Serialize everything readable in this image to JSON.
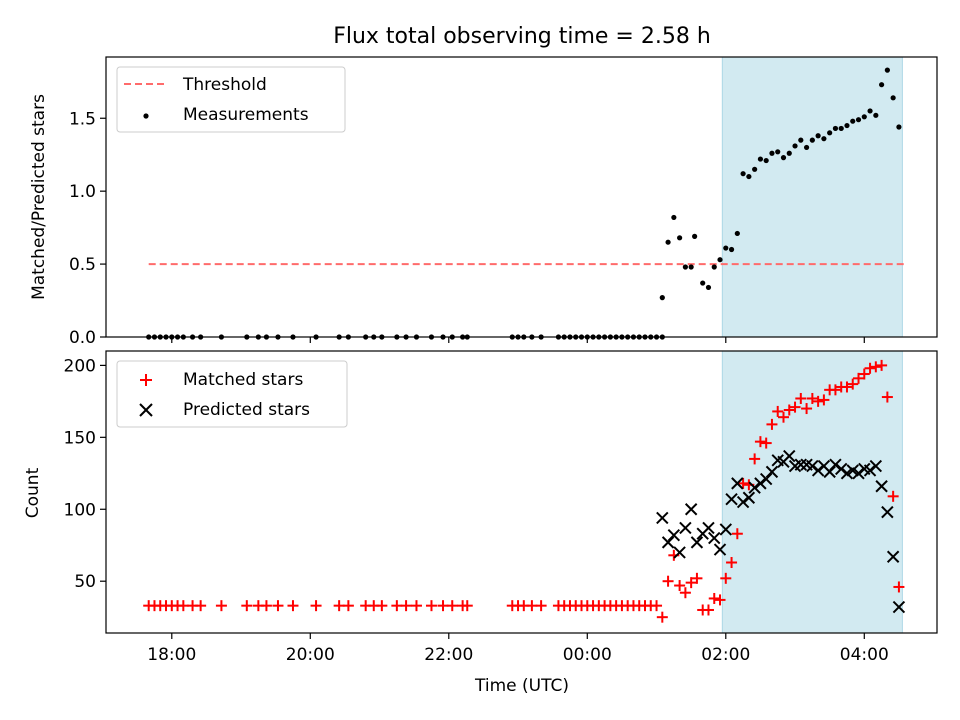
{
  "figure": {
    "title": "Flux total observing time = 2.58 h",
    "xlabel": "Time (UTC)"
  },
  "chart_data": [
    {
      "type": "scatter",
      "panel": "top",
      "ylabel": "Matched/Predicted stars",
      "ylim": [
        0,
        1.92
      ],
      "xlim": [
        "17:03",
        "05:03"
      ],
      "yticks": [
        0.0,
        0.5,
        1.0,
        1.5
      ],
      "ytick_labels": [
        "0.0",
        "0.5",
        "1.0",
        "1.5"
      ],
      "legend": {
        "placement": "top-left",
        "entries": [
          "Threshold",
          "Measurements"
        ]
      },
      "threshold": {
        "name": "Threshold",
        "value": 0.5,
        "x_range": [
          "17:40",
          "04:35"
        ],
        "color": "#ff6b6b"
      },
      "shaded_region": {
        "x_range": [
          "01:57",
          "04:33"
        ],
        "color": "#add8e6"
      },
      "series": [
        {
          "name": "Measurements",
          "color": "#000000",
          "points": [
            [
              "17:40",
              0
            ],
            [
              "17:45",
              0
            ],
            [
              "17:50",
              0
            ],
            [
              "17:55",
              0
            ],
            [
              "18:00",
              0
            ],
            [
              "18:05",
              0
            ],
            [
              "18:10",
              0
            ],
            [
              "18:18",
              0
            ],
            [
              "18:25",
              0
            ],
            [
              "18:43",
              0
            ],
            [
              "19:05",
              0
            ],
            [
              "19:15",
              0
            ],
            [
              "19:22",
              0
            ],
            [
              "19:32",
              0
            ],
            [
              "19:45",
              0
            ],
            [
              "20:05",
              0
            ],
            [
              "20:25",
              0
            ],
            [
              "20:33",
              0
            ],
            [
              "20:48",
              0
            ],
            [
              "20:55",
              0
            ],
            [
              "21:02",
              0
            ],
            [
              "21:15",
              0
            ],
            [
              "21:23",
              0
            ],
            [
              "21:32",
              0
            ],
            [
              "21:45",
              0
            ],
            [
              "21:55",
              0
            ],
            [
              "22:03",
              0
            ],
            [
              "22:12",
              0
            ],
            [
              "22:16",
              0
            ],
            [
              "22:55",
              0
            ],
            [
              "23:00",
              0
            ],
            [
              "23:05",
              0
            ],
            [
              "23:12",
              0
            ],
            [
              "23:20",
              0
            ],
            [
              "23:35",
              0
            ],
            [
              "23:40",
              0
            ],
            [
              "23:45",
              0
            ],
            [
              "23:50",
              0
            ],
            [
              "23:55",
              0
            ],
            [
              "00:00",
              0
            ],
            [
              "00:05",
              0
            ],
            [
              "00:10",
              0
            ],
            [
              "00:15",
              0
            ],
            [
              "00:20",
              0
            ],
            [
              "00:25",
              0
            ],
            [
              "00:30",
              0
            ],
            [
              "00:35",
              0
            ],
            [
              "00:40",
              0
            ],
            [
              "00:45",
              0
            ],
            [
              "00:50",
              0
            ],
            [
              "00:55",
              0
            ],
            [
              "01:00",
              0
            ],
            [
              "01:05",
              0
            ],
            [
              "01:05",
              0.27
            ],
            [
              "01:10",
              0.65
            ],
            [
              "01:15",
              0.82
            ],
            [
              "01:20",
              0.68
            ],
            [
              "01:25",
              0.48
            ],
            [
              "01:30",
              0.48
            ],
            [
              "01:33",
              0.69
            ],
            [
              "01:40",
              0.37
            ],
            [
              "01:45",
              0.34
            ],
            [
              "01:50",
              0.48
            ],
            [
              "01:55",
              0.53
            ],
            [
              "02:00",
              0.61
            ],
            [
              "02:05",
              0.6
            ],
            [
              "02:10",
              0.71
            ],
            [
              "02:15",
              1.12
            ],
            [
              "02:20",
              1.1
            ],
            [
              "02:25",
              1.15
            ],
            [
              "02:30",
              1.22
            ],
            [
              "02:35",
              1.21
            ],
            [
              "02:40",
              1.26
            ],
            [
              "02:45",
              1.27
            ],
            [
              "02:50",
              1.23
            ],
            [
              "02:55",
              1.26
            ],
            [
              "03:00",
              1.31
            ],
            [
              "03:05",
              1.35
            ],
            [
              "03:10",
              1.3
            ],
            [
              "03:15",
              1.35
            ],
            [
              "03:20",
              1.38
            ],
            [
              "03:25",
              1.36
            ],
            [
              "03:30",
              1.4
            ],
            [
              "03:35",
              1.43
            ],
            [
              "03:40",
              1.43
            ],
            [
              "03:45",
              1.45
            ],
            [
              "03:50",
              1.48
            ],
            [
              "03:55",
              1.49
            ],
            [
              "04:00",
              1.51
            ],
            [
              "04:05",
              1.55
            ],
            [
              "04:10",
              1.52
            ],
            [
              "04:15",
              1.73
            ],
            [
              "04:20",
              1.83
            ],
            [
              "04:25",
              1.64
            ],
            [
              "04:30",
              1.44
            ]
          ]
        }
      ]
    },
    {
      "type": "scatter",
      "panel": "bottom",
      "xlabel": "Time (UTC)",
      "ylabel": "Count",
      "ylim": [
        14,
        210
      ],
      "xlim": [
        "17:03",
        "05:03"
      ],
      "yticks": [
        50,
        100,
        150,
        200
      ],
      "ytick_labels": [
        "50",
        "100",
        "150",
        "200"
      ],
      "xticks": [
        "18:00",
        "20:00",
        "22:00",
        "00:00",
        "02:00",
        "04:00"
      ],
      "legend": {
        "placement": "top-left",
        "entries": [
          "Matched stars",
          "Predicted stars"
        ]
      },
      "shaded_region": {
        "x_range": [
          "01:57",
          "04:33"
        ],
        "color": "#add8e6"
      },
      "series": [
        {
          "name": "Matched stars",
          "marker": "+",
          "color": "#ff0000",
          "points": [
            [
              "17:40",
              33
            ],
            [
              "17:45",
              33
            ],
            [
              "17:50",
              33
            ],
            [
              "17:55",
              33
            ],
            [
              "18:00",
              33
            ],
            [
              "18:05",
              33
            ],
            [
              "18:10",
              33
            ],
            [
              "18:18",
              33
            ],
            [
              "18:25",
              33
            ],
            [
              "18:43",
              33
            ],
            [
              "19:05",
              33
            ],
            [
              "19:15",
              33
            ],
            [
              "19:22",
              33
            ],
            [
              "19:32",
              33
            ],
            [
              "19:45",
              33
            ],
            [
              "20:05",
              33
            ],
            [
              "20:25",
              33
            ],
            [
              "20:33",
              33
            ],
            [
              "20:48",
              33
            ],
            [
              "20:55",
              33
            ],
            [
              "21:02",
              33
            ],
            [
              "21:15",
              33
            ],
            [
              "21:23",
              33
            ],
            [
              "21:32",
              33
            ],
            [
              "21:45",
              33
            ],
            [
              "21:55",
              33
            ],
            [
              "22:03",
              33
            ],
            [
              "22:12",
              33
            ],
            [
              "22:16",
              33
            ],
            [
              "22:55",
              33
            ],
            [
              "23:00",
              33
            ],
            [
              "23:05",
              33
            ],
            [
              "23:12",
              33
            ],
            [
              "23:20",
              33
            ],
            [
              "23:35",
              33
            ],
            [
              "23:40",
              33
            ],
            [
              "23:45",
              33
            ],
            [
              "23:50",
              33
            ],
            [
              "23:55",
              33
            ],
            [
              "00:00",
              33
            ],
            [
              "00:05",
              33
            ],
            [
              "00:10",
              33
            ],
            [
              "00:15",
              33
            ],
            [
              "00:20",
              33
            ],
            [
              "00:25",
              33
            ],
            [
              "00:30",
              33
            ],
            [
              "00:35",
              33
            ],
            [
              "00:40",
              33
            ],
            [
              "00:45",
              33
            ],
            [
              "00:50",
              33
            ],
            [
              "00:55",
              33
            ],
            [
              "01:00",
              33
            ],
            [
              "01:05",
              25
            ],
            [
              "01:10",
              50
            ],
            [
              "01:15",
              68
            ],
            [
              "01:20",
              47
            ],
            [
              "01:25",
              42
            ],
            [
              "01:30",
              49
            ],
            [
              "01:35",
              52
            ],
            [
              "01:40",
              30
            ],
            [
              "01:45",
              30
            ],
            [
              "01:50",
              38
            ],
            [
              "01:55",
              37
            ],
            [
              "02:00",
              52
            ],
            [
              "02:05",
              63
            ],
            [
              "02:10",
              83
            ],
            [
              "02:15",
              118
            ],
            [
              "02:20",
              117
            ],
            [
              "02:25",
              135
            ],
            [
              "02:30",
              147
            ],
            [
              "02:35",
              146
            ],
            [
              "02:40",
              159
            ],
            [
              "02:45",
              168
            ],
            [
              "02:50",
              164
            ],
            [
              "02:55",
              169
            ],
            [
              "03:00",
              171
            ],
            [
              "03:05",
              177
            ],
            [
              "03:10",
              170
            ],
            [
              "03:15",
              177
            ],
            [
              "03:20",
              175
            ],
            [
              "03:25",
              176
            ],
            [
              "03:30",
              183
            ],
            [
              "03:35",
              183
            ],
            [
              "03:40",
              185
            ],
            [
              "03:45",
              185
            ],
            [
              "03:50",
              187
            ],
            [
              "03:55",
              191
            ],
            [
              "04:00",
              194
            ],
            [
              "04:05",
              198
            ],
            [
              "04:10",
              199
            ],
            [
              "04:15",
              200
            ],
            [
              "04:20",
              178
            ],
            [
              "04:25",
              109
            ],
            [
              "04:30",
              46
            ]
          ]
        },
        {
          "name": "Predicted stars",
          "marker": "x",
          "color": "#000000",
          "points": [
            [
              "01:05",
              94
            ],
            [
              "01:10",
              77
            ],
            [
              "01:15",
              82
            ],
            [
              "01:20",
              70
            ],
            [
              "01:25",
              87
            ],
            [
              "01:30",
              100
            ],
            [
              "01:35",
              77
            ],
            [
              "01:40",
              83
            ],
            [
              "01:45",
              87
            ],
            [
              "01:50",
              80
            ],
            [
              "01:55",
              72
            ],
            [
              "02:00",
              86
            ],
            [
              "02:05",
              107
            ],
            [
              "02:10",
              118
            ],
            [
              "02:15",
              105
            ],
            [
              "02:20",
              108
            ],
            [
              "02:25",
              115
            ],
            [
              "02:30",
              118
            ],
            [
              "02:35",
              121
            ],
            [
              "02:40",
              126
            ],
            [
              "02:45",
              134
            ],
            [
              "02:50",
              133
            ],
            [
              "02:55",
              137
            ],
            [
              "03:00",
              130
            ],
            [
              "03:05",
              131
            ],
            [
              "03:10",
              131
            ],
            [
              "03:15",
              130
            ],
            [
              "03:20",
              127
            ],
            [
              "03:25",
              130
            ],
            [
              "03:30",
              126
            ],
            [
              "03:35",
              131
            ],
            [
              "03:40",
              128
            ],
            [
              "03:45",
              125
            ],
            [
              "03:50",
              127
            ],
            [
              "03:55",
              125
            ],
            [
              "04:00",
              128
            ],
            [
              "04:05",
              127
            ],
            [
              "04:10",
              130
            ],
            [
              "04:15",
              116
            ],
            [
              "04:20",
              98
            ],
            [
              "04:25",
              67
            ],
            [
              "04:30",
              32
            ]
          ]
        }
      ]
    }
  ]
}
